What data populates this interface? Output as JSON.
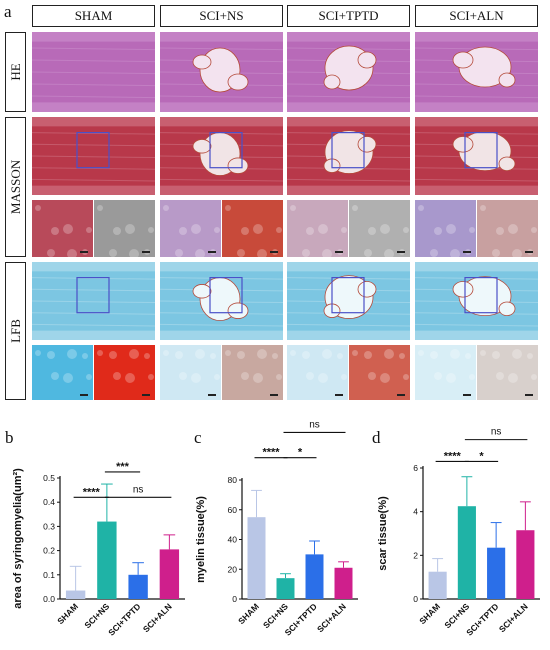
{
  "figure": {
    "panel_letters": [
      "a",
      "b",
      "c",
      "d"
    ],
    "columns": [
      "SHAM",
      "SCI+NS",
      "SCI+TPTD",
      "SCI+ALN"
    ],
    "rows": [
      "HE",
      "MASSON",
      "LFB"
    ]
  },
  "histology": {
    "HE": {
      "bg": "#b86ab8",
      "band": "#c98ccb",
      "lesion_color": "#f3e3ef"
    },
    "MASSON": {
      "bg": "#b8384a",
      "band": "#cf7080",
      "lesion_color": "#f1e4e6"
    },
    "LFB": {
      "bg": "#7cc6e2",
      "band": "#aedcec",
      "lesion_color": "#eef8fb"
    },
    "zoom_box_color": "#4a50c8",
    "masson_zooms": [
      {
        "left": "#b84a5a",
        "right": "#9a9a9a"
      },
      {
        "left": "#b89ac8",
        "right": "#c84a3a"
      },
      {
        "left": "#c8a8bc",
        "right": "#b0b0b0"
      },
      {
        "left": "#a898cc",
        "right": "#c8a0a0"
      }
    ],
    "lfb_zooms": [
      {
        "left": "#4fb8e0",
        "right": "#e02a1a"
      },
      {
        "left": "#cfe8f3",
        "right": "#c8a8a0"
      },
      {
        "left": "#cfe8f3",
        "right": "#d06050"
      },
      {
        "left": "#d8eef6",
        "right": "#d8d0cc"
      }
    ]
  },
  "chart_data": [
    {
      "type": "bar",
      "panel": "b",
      "categories": [
        "SHAM",
        "SCI+NS",
        "SCI+TPTD",
        "SCI+ALN"
      ],
      "values": [
        0.035,
        0.32,
        0.1,
        0.205
      ],
      "errors": [
        0.1,
        0.155,
        0.05,
        0.06
      ],
      "ylabel": "area of syringomyelia(um²)",
      "ylim": [
        0,
        0.5
      ],
      "yticks": [
        "0.0",
        "0.1",
        "0.2",
        "0.3",
        "0.4",
        "0.5"
      ],
      "colors": [
        "#b9c6e6",
        "#1fb3a6",
        "#2b6fe8",
        "#cf1f8c"
      ],
      "significance": [
        {
          "from": 0,
          "to": 1,
          "label": "****",
          "level": 0.42
        },
        {
          "from": 1,
          "to": 2,
          "label": "***",
          "level": 0.525
        },
        {
          "from": 1,
          "to": 3,
          "label": "ns",
          "level": 0.42
        }
      ]
    },
    {
      "type": "bar",
      "panel": "c",
      "categories": [
        "SHAM",
        "SCI+NS",
        "SCI+TPTD",
        "SCI+ALN"
      ],
      "values": [
        55,
        14,
        30,
        21
      ],
      "errors": [
        18,
        3,
        9,
        4
      ],
      "ylabel": "myelin tissue(%)",
      "ylim": [
        0,
        80
      ],
      "yticks": [
        "0",
        "20",
        "40",
        "60",
        "80"
      ],
      "colors": [
        "#b9c6e6",
        "#1fb3a6",
        "#2b6fe8",
        "#cf1f8c"
      ],
      "significance": [
        {
          "from": 0,
          "to": 1,
          "label": "****",
          "level": 95
        },
        {
          "from": 1,
          "to": 2,
          "label": "*",
          "level": 95
        },
        {
          "from": 1,
          "to": 3,
          "label": "ns",
          "level": 112
        }
      ]
    },
    {
      "type": "bar",
      "panel": "d",
      "categories": [
        "SHAM",
        "SCI+NS",
        "SCI+TPTD",
        "SCI+ALN"
      ],
      "values": [
        1.25,
        4.25,
        2.35,
        3.15
      ],
      "errors": [
        0.6,
        1.35,
        1.15,
        1.3
      ],
      "ylabel": "scar tissue(%)",
      "ylim": [
        0,
        6
      ],
      "yticks": [
        "0",
        "2",
        "4",
        "6"
      ],
      "colors": [
        "#b9c6e6",
        "#1fb3a6",
        "#2b6fe8",
        "#cf1f8c"
      ],
      "significance": [
        {
          "from": 0,
          "to": 1,
          "label": "****",
          "level": 6.3
        },
        {
          "from": 1,
          "to": 2,
          "label": "*",
          "level": 6.3
        },
        {
          "from": 1,
          "to": 3,
          "label": "ns",
          "level": 7.3
        }
      ]
    }
  ]
}
